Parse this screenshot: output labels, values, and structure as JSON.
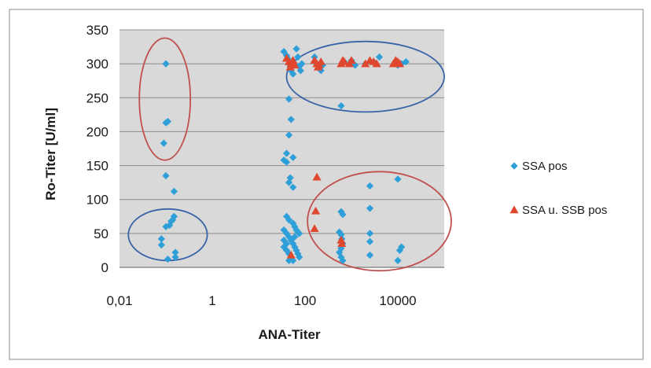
{
  "chart_data": {
    "type": "scatter",
    "title": "",
    "xlabel": "ANA-Titer",
    "ylabel": "Ro-Titer [U/ml]",
    "x_scale": "log",
    "xlim": [
      0.01,
      100000
    ],
    "ylim": [
      0,
      350
    ],
    "x_tick_labels": [
      "0,01",
      "1",
      "100",
      "10000"
    ],
    "x_tick_values": [
      0.01,
      1,
      100,
      10000
    ],
    "y_ticks": [
      0,
      50,
      100,
      150,
      200,
      250,
      300,
      350
    ],
    "grid": "horizontal",
    "plot_background": "#d9d9d9",
    "legend_position": "right",
    "series": [
      {
        "name": "SSA pos",
        "marker": "diamond",
        "color": "#2e9fd8",
        "points": [
          [
            0.1,
            300
          ],
          [
            0.1,
            213
          ],
          [
            0.11,
            215
          ],
          [
            0.09,
            183
          ],
          [
            0.1,
            135
          ],
          [
            0.15,
            112
          ],
          [
            0.15,
            75
          ],
          [
            0.14,
            70
          ],
          [
            0.13,
            68
          ],
          [
            0.12,
            62
          ],
          [
            0.1,
            60
          ],
          [
            0.08,
            42
          ],
          [
            0.08,
            33
          ],
          [
            0.11,
            12
          ],
          [
            0.16,
            22
          ],
          [
            0.16,
            15
          ],
          [
            35,
            318
          ],
          [
            40,
            312
          ],
          [
            42,
            308
          ],
          [
            45,
            300
          ],
          [
            48,
            295
          ],
          [
            50,
            290
          ],
          [
            55,
            305
          ],
          [
            60,
            300
          ],
          [
            55,
            285
          ],
          [
            65,
            322
          ],
          [
            70,
            310
          ],
          [
            75,
            296
          ],
          [
            80,
            290
          ],
          [
            85,
            300
          ],
          [
            45,
            248
          ],
          [
            50,
            218
          ],
          [
            45,
            195
          ],
          [
            40,
            168
          ],
          [
            35,
            158
          ],
          [
            40,
            155
          ],
          [
            55,
            162
          ],
          [
            48,
            132
          ],
          [
            45,
            125
          ],
          [
            55,
            118
          ],
          [
            40,
            75
          ],
          [
            45,
            70
          ],
          [
            55,
            65
          ],
          [
            60,
            60
          ],
          [
            65,
            55
          ],
          [
            70,
            52
          ],
          [
            75,
            50
          ],
          [
            35,
            55
          ],
          [
            40,
            50
          ],
          [
            45,
            45
          ],
          [
            50,
            40
          ],
          [
            55,
            35
          ],
          [
            60,
            30
          ],
          [
            65,
            25
          ],
          [
            70,
            20
          ],
          [
            75,
            15
          ],
          [
            35,
            30
          ],
          [
            40,
            25
          ],
          [
            45,
            20
          ],
          [
            50,
            15
          ],
          [
            55,
            10
          ],
          [
            60,
            45
          ],
          [
            35,
            40
          ],
          [
            40,
            35
          ],
          [
            45,
            10
          ],
          [
            160,
            310
          ],
          [
            180,
            300
          ],
          [
            200,
            295
          ],
          [
            220,
            290
          ],
          [
            240,
            298
          ],
          [
            600,
            238
          ],
          [
            700,
            303
          ],
          [
            1000,
            305
          ],
          [
            1200,
            298
          ],
          [
            2000,
            300
          ],
          [
            3000,
            303
          ],
          [
            4000,
            310
          ],
          [
            15000,
            303
          ],
          [
            12000,
            300
          ],
          [
            10000,
            298
          ],
          [
            600,
            82
          ],
          [
            650,
            78
          ],
          [
            550,
            52
          ],
          [
            600,
            48
          ],
          [
            620,
            42
          ],
          [
            650,
            35
          ],
          [
            600,
            28
          ],
          [
            550,
            22
          ],
          [
            600,
            15
          ],
          [
            650,
            10
          ],
          [
            2500,
            120
          ],
          [
            2500,
            87
          ],
          [
            2500,
            50
          ],
          [
            2500,
            38
          ],
          [
            2500,
            18
          ],
          [
            10000,
            130
          ],
          [
            12000,
            30
          ],
          [
            11000,
            25
          ],
          [
            10000,
            10
          ]
        ]
      },
      {
        "name": "SSA u. SSB pos",
        "marker": "triangle",
        "color": "#e0472f",
        "points": [
          [
            40,
            308
          ],
          [
            45,
            303
          ],
          [
            50,
            300
          ],
          [
            55,
            305
          ],
          [
            60,
            298
          ],
          [
            48,
            295
          ],
          [
            160,
            305
          ],
          [
            180,
            300
          ],
          [
            200,
            298
          ],
          [
            220,
            303
          ],
          [
            190,
            295
          ],
          [
            600,
            300
          ],
          [
            650,
            305
          ],
          [
            700,
            303
          ],
          [
            900,
            300
          ],
          [
            1000,
            305
          ],
          [
            2000,
            300
          ],
          [
            2500,
            305
          ],
          [
            3000,
            303
          ],
          [
            3500,
            300
          ],
          [
            8000,
            300
          ],
          [
            9000,
            305
          ],
          [
            10000,
            303
          ],
          [
            11000,
            300
          ],
          [
            180,
            133
          ],
          [
            170,
            83
          ],
          [
            160,
            57
          ],
          [
            600,
            40
          ],
          [
            620,
            35
          ],
          [
            50,
            18
          ]
        ]
      }
    ],
    "annotations": [
      {
        "shape": "ellipse",
        "color": "#c0504d",
        "cx": 0.095,
        "cy": 248,
        "rx_decades": 0.55,
        "ry": 90
      },
      {
        "shape": "ellipse",
        "color": "#3a64a8",
        "cx": 0.11,
        "cy": 48,
        "rx_decades": 0.85,
        "ry": 38
      },
      {
        "shape": "ellipse",
        "color": "#3a64a8",
        "cx": 2000,
        "cy": 281,
        "rx_decades": 1.7,
        "ry": 52
      },
      {
        "shape": "ellipse",
        "color": "#c0504d",
        "cx": 4000,
        "cy": 68,
        "rx_decades": 1.55,
        "ry": 73
      }
    ]
  }
}
